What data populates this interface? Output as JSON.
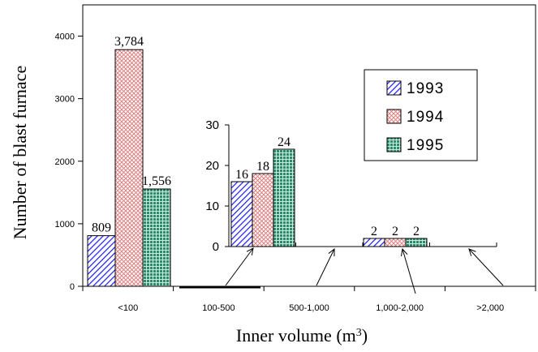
{
  "chart_data": [
    {
      "type": "bar",
      "xlabel": "Inner volume (m³)",
      "ylabel": "Number of blast furnace",
      "categories": [
        "<100",
        "100-500",
        "500-1,000",
        "1,000-2,000",
        ">2,000"
      ],
      "ylim": [
        0,
        4500
      ],
      "yticks": [
        0,
        1000,
        2000,
        3000,
        4000
      ],
      "legend_position": "right",
      "series": [
        {
          "name": "1993",
          "values": [
            809,
            16,
            0,
            2,
            0
          ],
          "labels": [
            "809",
            "",
            "",
            "",
            ""
          ],
          "color": "#1a1aff",
          "pattern": "diagonal-hatch"
        },
        {
          "name": "1994",
          "values": [
            3784,
            18,
            0,
            2,
            0
          ],
          "labels": [
            "3,784",
            "",
            "",
            "",
            ""
          ],
          "color": "#e08080",
          "pattern": "crosshatch"
        },
        {
          "name": "1995",
          "values": [
            1556,
            24,
            0,
            2,
            0
          ],
          "labels": [
            "1,556",
            "",
            "",
            "",
            ""
          ],
          "color": "#2e8b6e",
          "pattern": "grid"
        }
      ]
    },
    {
      "type": "bar",
      "role": "inset",
      "categories": [
        "100-500",
        "500-1,000",
        "1,000-2,000",
        ">2,000"
      ],
      "ylim": [
        0,
        30
      ],
      "yticks": [
        0,
        10,
        20,
        30
      ],
      "series": [
        {
          "name": "1993",
          "values": [
            16,
            0,
            2,
            0
          ],
          "labels": [
            "16",
            "",
            "2",
            ""
          ]
        },
        {
          "name": "1994",
          "values": [
            18,
            0,
            2,
            0
          ],
          "labels": [
            "18",
            "",
            "2",
            ""
          ]
        },
        {
          "name": "1995",
          "values": [
            24,
            0,
            2,
            0
          ],
          "labels": [
            "24",
            "",
            "2",
            ""
          ]
        }
      ]
    }
  ]
}
